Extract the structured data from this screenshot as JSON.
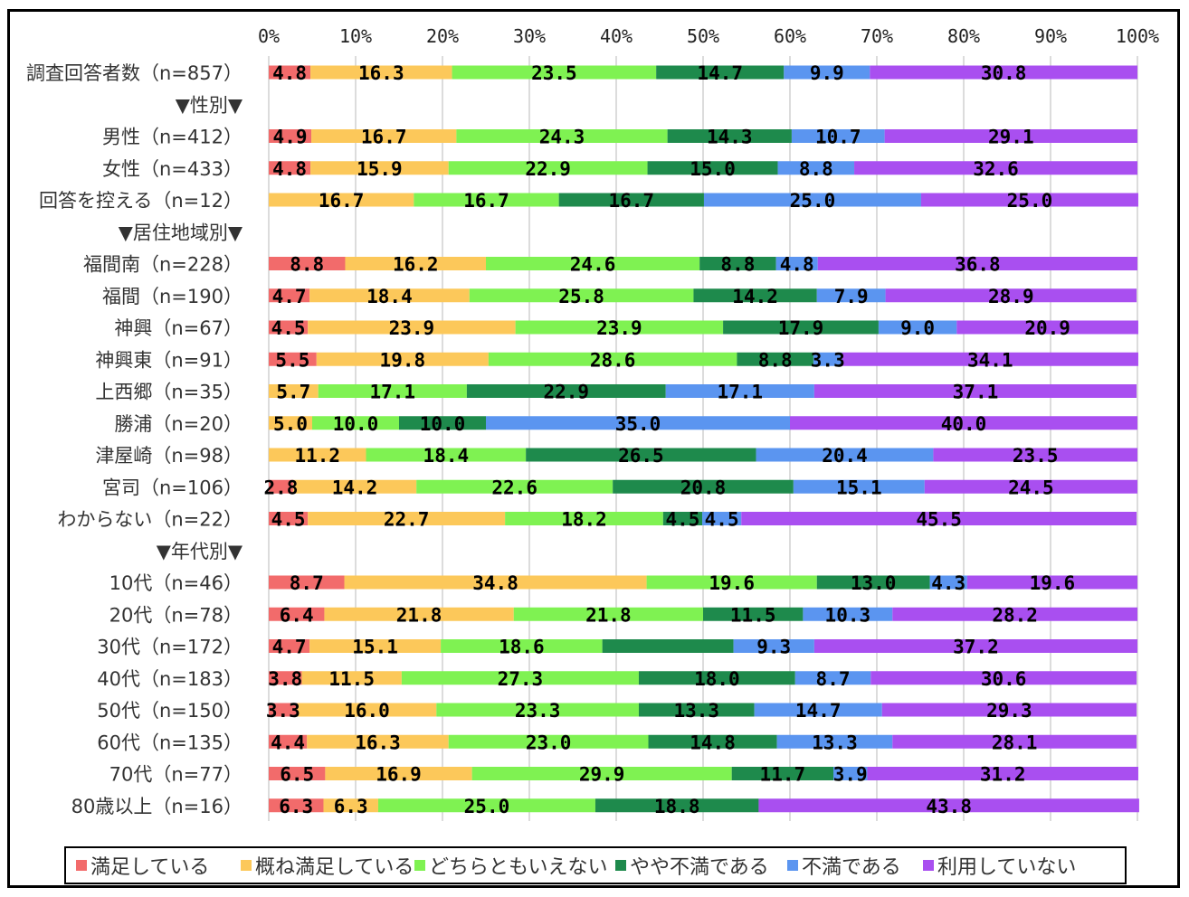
{
  "chart_data": {
    "type": "bar",
    "orientation": "horizontal",
    "stacked": true,
    "xlim": [
      0,
      100
    ],
    "x_ticks": [
      "0%",
      "10%",
      "20%",
      "30%",
      "40%",
      "50%",
      "60%",
      "70%",
      "80%",
      "90%",
      "100%"
    ],
    "grid": true,
    "legend_position": "bottom",
    "categories": [
      "調査回答者数（n=857）",
      "▼性別▼",
      "男性（n=412）",
      "女性（n=433）",
      "回答を控える（n=12）",
      "▼居住地域別▼",
      "福間南（n=228）",
      "福間（n=190）",
      "神興（n=67）",
      "神興東（n=91）",
      "上西郷（n=35）",
      "勝浦（n=20）",
      "津屋崎（n=98）",
      "宮司（n=106）",
      "わからない（n=22）",
      "▼年代別▼",
      "10代（n=46）",
      "20代（n=78）",
      "30代（n=172）",
      "40代（n=183）",
      "50代（n=150）",
      "60代（n=135）",
      "70代（n=77）",
      "80歳以上（n=16）"
    ],
    "series": [
      {
        "name": "満足している",
        "color": "#f26b6b",
        "values": [
          4.8,
          null,
          4.9,
          4.8,
          0,
          null,
          8.8,
          4.7,
          4.5,
          5.5,
          0,
          0,
          0,
          2.8,
          4.5,
          null,
          8.7,
          6.4,
          4.7,
          3.8,
          3.3,
          4.4,
          6.5,
          6.3
        ]
      },
      {
        "name": "概ね満足している",
        "color": "#fcc85a",
        "values": [
          16.3,
          null,
          16.7,
          15.9,
          16.7,
          null,
          16.2,
          18.4,
          23.9,
          19.8,
          5.7,
          5.0,
          11.2,
          14.2,
          22.7,
          null,
          34.8,
          21.8,
          15.1,
          11.5,
          16.0,
          16.3,
          16.9,
          6.3
        ]
      },
      {
        "name": "どちらともいえない",
        "color": "#7ff252",
        "values": [
          23.5,
          null,
          24.3,
          22.9,
          16.7,
          null,
          24.6,
          25.8,
          23.9,
          28.6,
          17.1,
          10.0,
          18.4,
          22.6,
          18.2,
          null,
          19.6,
          21.8,
          18.6,
          27.3,
          23.3,
          23.0,
          29.9,
          25.0
        ]
      },
      {
        "name": "やや不満である",
        "color": "#1e8a4c",
        "values": [
          14.7,
          null,
          14.3,
          15.0,
          16.7,
          null,
          8.8,
          14.2,
          17.9,
          8.8,
          22.9,
          10.0,
          26.5,
          20.8,
          4.5,
          null,
          13.0,
          11.5,
          15.1,
          18.0,
          13.3,
          14.8,
          11.7,
          18.8
        ]
      },
      {
        "name": "不満である",
        "color": "#5b95f0",
        "values": [
          9.9,
          null,
          10.7,
          8.8,
          25.0,
          null,
          4.8,
          7.9,
          9.0,
          3.3,
          17.1,
          35.0,
          20.4,
          15.1,
          4.5,
          null,
          4.3,
          10.3,
          9.3,
          8.7,
          14.7,
          13.3,
          3.9,
          0
        ]
      },
      {
        "name": "利用していない",
        "color": "#a94ff0",
        "values": [
          30.8,
          null,
          29.1,
          32.6,
          25.0,
          null,
          36.8,
          28.9,
          20.9,
          34.1,
          37.1,
          40.0,
          23.5,
          24.5,
          45.5,
          null,
          19.6,
          28.2,
          37.2,
          30.6,
          29.3,
          28.1,
          31.2,
          43.8
        ]
      }
    ],
    "hidden_labels": [
      {
        "row": 18,
        "series": 3
      }
    ]
  }
}
